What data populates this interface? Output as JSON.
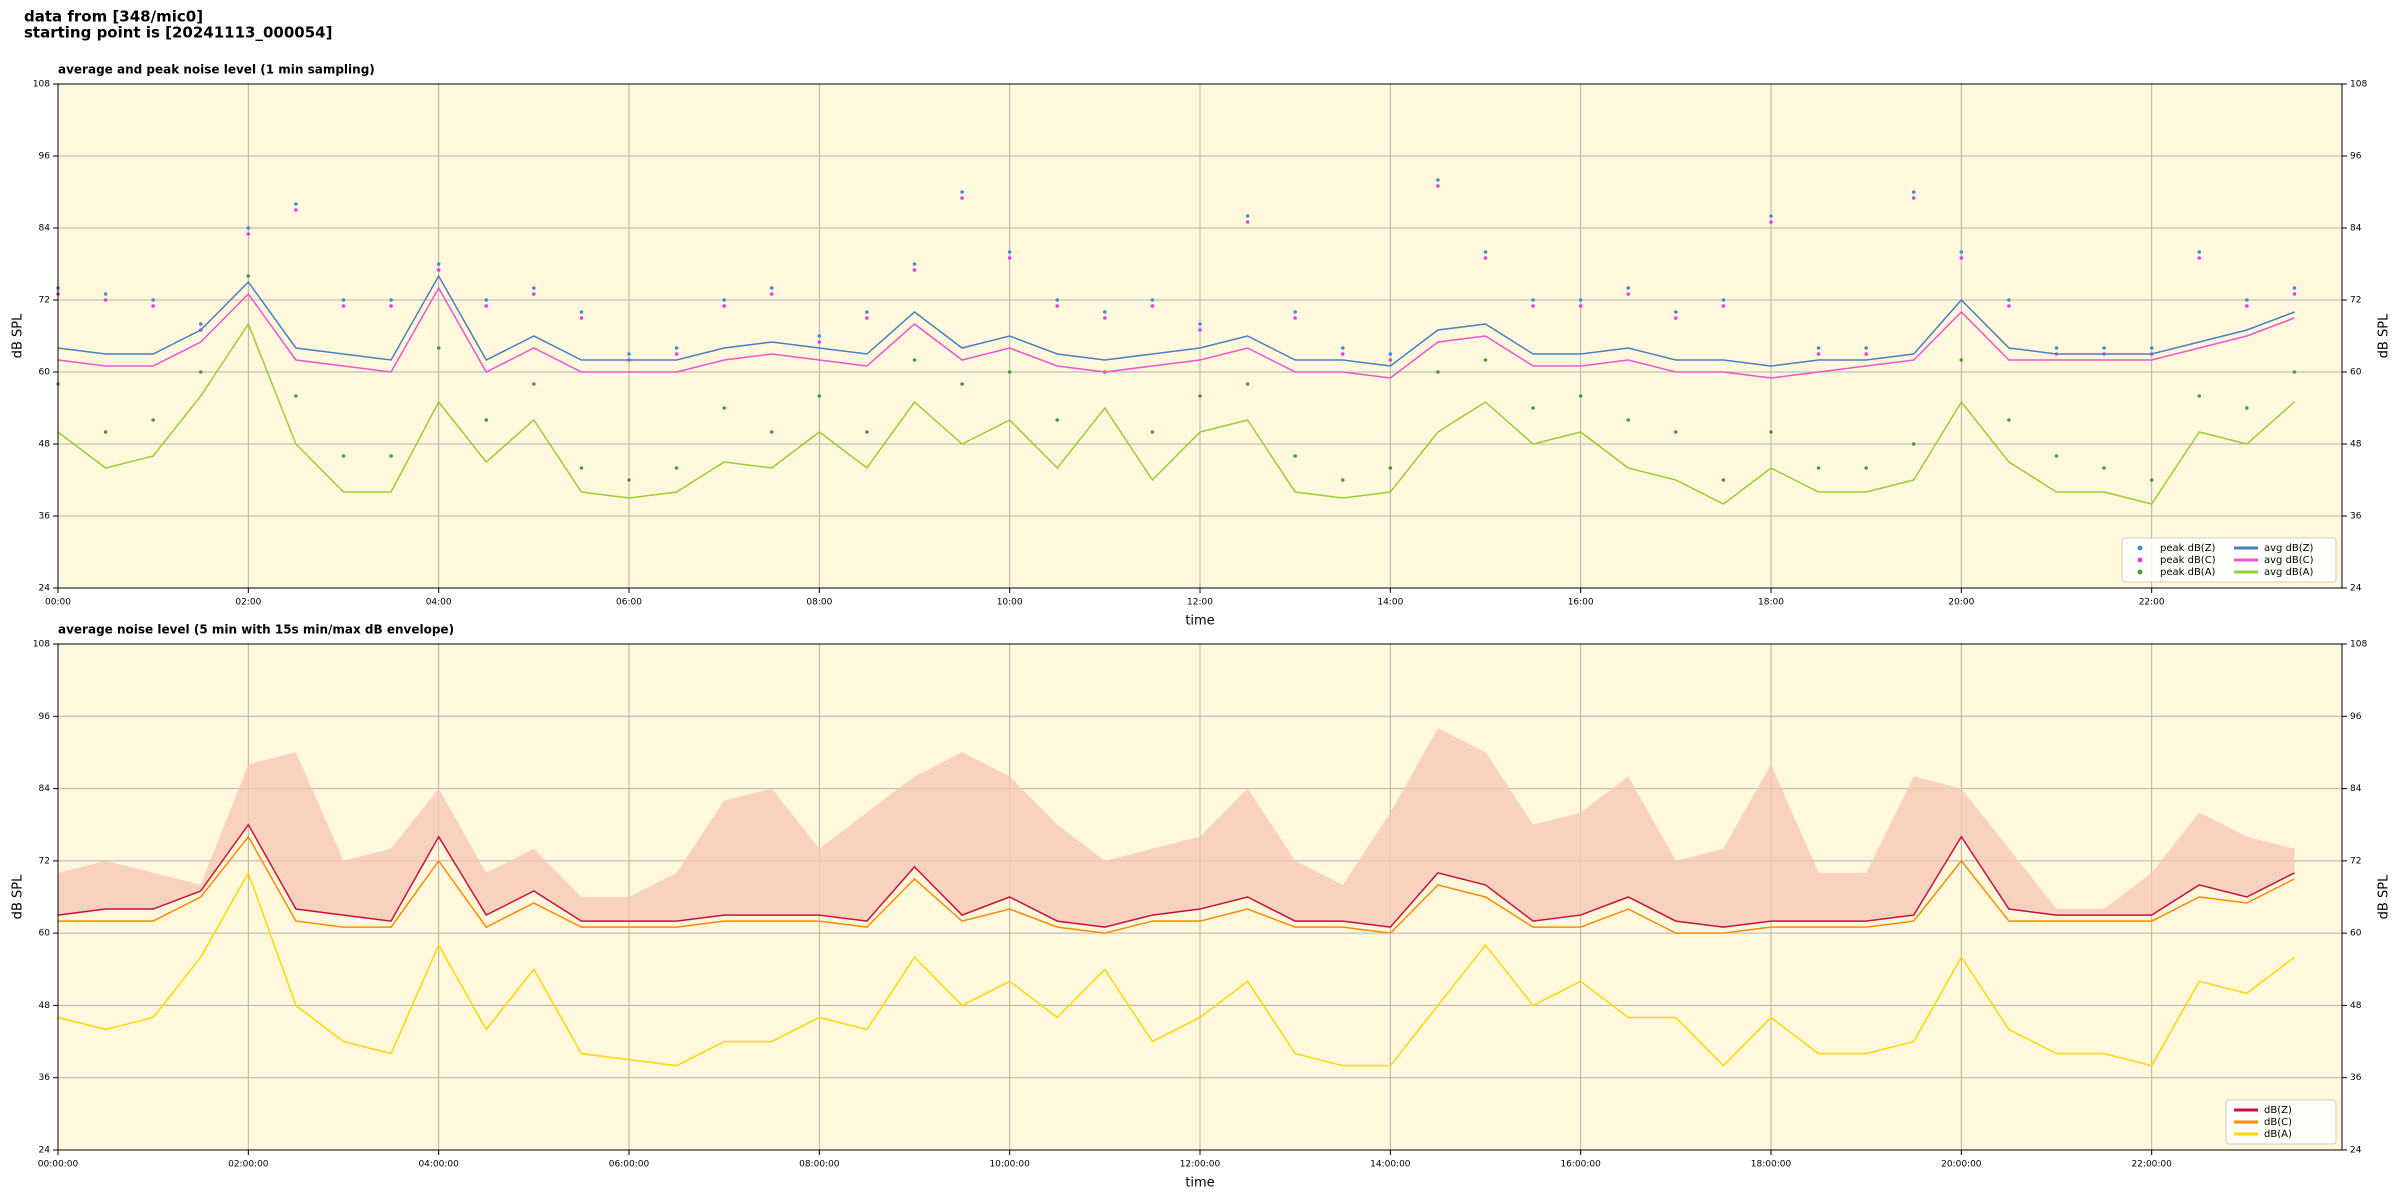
{
  "header": {
    "lines": [
      "data from [348/mic0]",
      "starting point is [20241113_000054]"
    ]
  },
  "chart_data": [
    {
      "type": "line",
      "title": "average and peak noise level (1 min sampling)",
      "xlabel": "time",
      "ylabel": "dB SPL",
      "x": [
        0,
        0.5,
        1,
        1.5,
        2,
        2.5,
        3,
        3.5,
        4,
        4.5,
        5,
        5.5,
        6,
        6.5,
        7,
        7.5,
        8,
        8.5,
        9,
        9.5,
        10,
        10.5,
        11,
        11.5,
        12,
        12.5,
        13,
        13.5,
        14,
        14.5,
        15,
        15.5,
        16,
        16.5,
        17,
        17.5,
        18,
        18.5,
        19,
        19.5,
        20,
        20.5,
        21,
        21.5,
        22,
        22.5,
        23,
        23.5
      ],
      "xlim": [
        0,
        24
      ],
      "xticks": [
        {
          "value": 0,
          "label": "00:00"
        },
        {
          "value": 2,
          "label": "02:00"
        },
        {
          "value": 4,
          "label": "04:00"
        },
        {
          "value": 6,
          "label": "06:00"
        },
        {
          "value": 8,
          "label": "08:00"
        },
        {
          "value": 10,
          "label": "10:00"
        },
        {
          "value": 12,
          "label": "12:00"
        },
        {
          "value": 14,
          "label": "14:00"
        },
        {
          "value": 16,
          "label": "16:00"
        },
        {
          "value": 18,
          "label": "18:00"
        },
        {
          "value": 20,
          "label": "20:00"
        },
        {
          "value": 22,
          "label": "22:00"
        }
      ],
      "ylim": [
        24,
        108
      ],
      "yticks": [
        24,
        36,
        48,
        60,
        72,
        84,
        96,
        108
      ],
      "grid": true,
      "legend": "lower right",
      "legend_columns": 2,
      "background": "#fff8dc",
      "series": [
        {
          "name": "peak dB(Z)",
          "style": "dots",
          "color": "#3f8fd8",
          "values": [
            74,
            73,
            72,
            68,
            84,
            88,
            72,
            72,
            78,
            72,
            74,
            70,
            63,
            64,
            72,
            74,
            66,
            70,
            78,
            90,
            80,
            72,
            70,
            72,
            68,
            86,
            70,
            64,
            63,
            92,
            80,
            72,
            72,
            74,
            70,
            72,
            86,
            64,
            64,
            90,
            80,
            72,
            64,
            64,
            64,
            80,
            72,
            74
          ]
        },
        {
          "name": "peak dB(C)",
          "style": "dots",
          "color": "#e040e0",
          "values": [
            73,
            72,
            71,
            67,
            83,
            87,
            71,
            71,
            77,
            71,
            73,
            69,
            62,
            63,
            71,
            73,
            65,
            69,
            77,
            89,
            79,
            71,
            69,
            71,
            67,
            85,
            69,
            63,
            62,
            91,
            79,
            71,
            71,
            73,
            69,
            71,
            85,
            63,
            63,
            89,
            79,
            71,
            63,
            63,
            63,
            79,
            71,
            73
          ]
        },
        {
          "name": "peak dB(A)",
          "style": "dots",
          "color": "#4f9a3c",
          "values": [
            58,
            50,
            52,
            60,
            76,
            56,
            46,
            46,
            64,
            52,
            58,
            44,
            42,
            44,
            54,
            50,
            56,
            50,
            62,
            58,
            60,
            52,
            60,
            50,
            56,
            58,
            46,
            42,
            44,
            60,
            62,
            54,
            56,
            52,
            50,
            42,
            50,
            44,
            44,
            48,
            62,
            52,
            46,
            44,
            42,
            56,
            54,
            60
          ]
        },
        {
          "name": "avg dB(Z)",
          "style": "line",
          "color": "#4a7fc0",
          "values": [
            64,
            63,
            63,
            67,
            75,
            64,
            63,
            62,
            76,
            62,
            66,
            62,
            62,
            62,
            64,
            65,
            64,
            63,
            70,
            64,
            66,
            63,
            62,
            63,
            64,
            66,
            62,
            62,
            61,
            67,
            68,
            63,
            63,
            64,
            62,
            62,
            61,
            62,
            62,
            63,
            72,
            64,
            63,
            63,
            63,
            65,
            67,
            70
          ]
        },
        {
          "name": "avg dB(C)",
          "style": "line",
          "color": "#ee55cc",
          "values": [
            62,
            61,
            61,
            65,
            73,
            62,
            61,
            60,
            74,
            60,
            64,
            60,
            60,
            60,
            62,
            63,
            62,
            61,
            68,
            62,
            64,
            61,
            60,
            61,
            62,
            64,
            60,
            60,
            59,
            65,
            66,
            61,
            61,
            62,
            60,
            60,
            59,
            60,
            61,
            62,
            70,
            62,
            62,
            62,
            62,
            64,
            66,
            69
          ]
        },
        {
          "name": "avg dB(A)",
          "style": "line",
          "color": "#9acd32",
          "values": [
            50,
            44,
            46,
            56,
            68,
            48,
            40,
            40,
            55,
            45,
            52,
            40,
            39,
            40,
            45,
            44,
            50,
            44,
            55,
            48,
            52,
            44,
            54,
            42,
            50,
            52,
            40,
            39,
            40,
            50,
            55,
            48,
            50,
            44,
            42,
            38,
            44,
            40,
            40,
            42,
            55,
            45,
            40,
            40,
            38,
            50,
            48,
            55
          ]
        }
      ]
    },
    {
      "type": "line",
      "title": "average noise level (5 min with 15s min/max dB envelope)",
      "xlabel": "time",
      "ylabel": "dB SPL",
      "x": [
        0,
        0.5,
        1,
        1.5,
        2,
        2.5,
        3,
        3.5,
        4,
        4.5,
        5,
        5.5,
        6,
        6.5,
        7,
        7.5,
        8,
        8.5,
        9,
        9.5,
        10,
        10.5,
        11,
        11.5,
        12,
        12.5,
        13,
        13.5,
        14,
        14.5,
        15,
        15.5,
        16,
        16.5,
        17,
        17.5,
        18,
        18.5,
        19,
        19.5,
        20,
        20.5,
        21,
        21.5,
        22,
        22.5,
        23,
        23.5
      ],
      "xlim": [
        0,
        24
      ],
      "xticks": [
        {
          "value": 0,
          "label": "00:00:00"
        },
        {
          "value": 2,
          "label": "02:00:00"
        },
        {
          "value": 4,
          "label": "04:00:00"
        },
        {
          "value": 6,
          "label": "06:00:00"
        },
        {
          "value": 8,
          "label": "08:00:00"
        },
        {
          "value": 10,
          "label": "10:00:00"
        },
        {
          "value": 12,
          "label": "12:00:00"
        },
        {
          "value": 14,
          "label": "14:00:00"
        },
        {
          "value": 16,
          "label": "16:00:00"
        },
        {
          "value": 18,
          "label": "18:00:00"
        },
        {
          "value": 20,
          "label": "20:00:00"
        },
        {
          "value": 22,
          "label": "22:00:00"
        }
      ],
      "ylim": [
        24,
        108
      ],
      "yticks": [
        24,
        36,
        48,
        60,
        72,
        84,
        96,
        108
      ],
      "grid": true,
      "legend": "lower right",
      "legend_columns": 1,
      "background": "#fff8dc",
      "envelope_max": {
        "color": "#f6c8b4",
        "values": [
          70,
          72,
          70,
          68,
          88,
          90,
          72,
          74,
          84,
          70,
          74,
          66,
          66,
          70,
          82,
          84,
          74,
          80,
          86,
          90,
          86,
          78,
          72,
          74,
          76,
          84,
          72,
          68,
          80,
          94,
          90,
          78,
          80,
          86,
          72,
          74,
          88,
          70,
          70,
          86,
          84,
          74,
          64,
          64,
          70,
          80,
          76,
          74
        ]
      },
      "series": [
        {
          "name": "dB(Z)",
          "style": "line",
          "color": "#c8103c",
          "values": [
            63,
            64,
            64,
            67,
            78,
            64,
            63,
            62,
            76,
            63,
            67,
            62,
            62,
            62,
            63,
            63,
            63,
            62,
            71,
            63,
            66,
            62,
            61,
            63,
            64,
            66,
            62,
            62,
            61,
            70,
            68,
            62,
            63,
            66,
            62,
            61,
            62,
            62,
            62,
            63,
            76,
            64,
            63,
            63,
            63,
            68,
            66,
            70
          ]
        },
        {
          "name": "dB(C)",
          "style": "line",
          "color": "#ff8c00",
          "values": [
            62,
            62,
            62,
            66,
            76,
            62,
            61,
            61,
            72,
            61,
            65,
            61,
            61,
            61,
            62,
            62,
            62,
            61,
            69,
            62,
            64,
            61,
            60,
            62,
            62,
            64,
            61,
            61,
            60,
            68,
            66,
            61,
            61,
            64,
            60,
            60,
            61,
            61,
            61,
            62,
            72,
            62,
            62,
            62,
            62,
            66,
            65,
            69
          ]
        },
        {
          "name": "dB(A)",
          "style": "line",
          "color": "#ffd700",
          "values": [
            46,
            44,
            46,
            56,
            70,
            48,
            42,
            40,
            58,
            44,
            54,
            40,
            39,
            38,
            42,
            42,
            46,
            44,
            56,
            48,
            52,
            46,
            54,
            42,
            46,
            52,
            40,
            38,
            38,
            48,
            58,
            48,
            52,
            46,
            46,
            38,
            46,
            40,
            40,
            42,
            56,
            44,
            40,
            40,
            38,
            52,
            50,
            56
          ]
        }
      ]
    }
  ]
}
